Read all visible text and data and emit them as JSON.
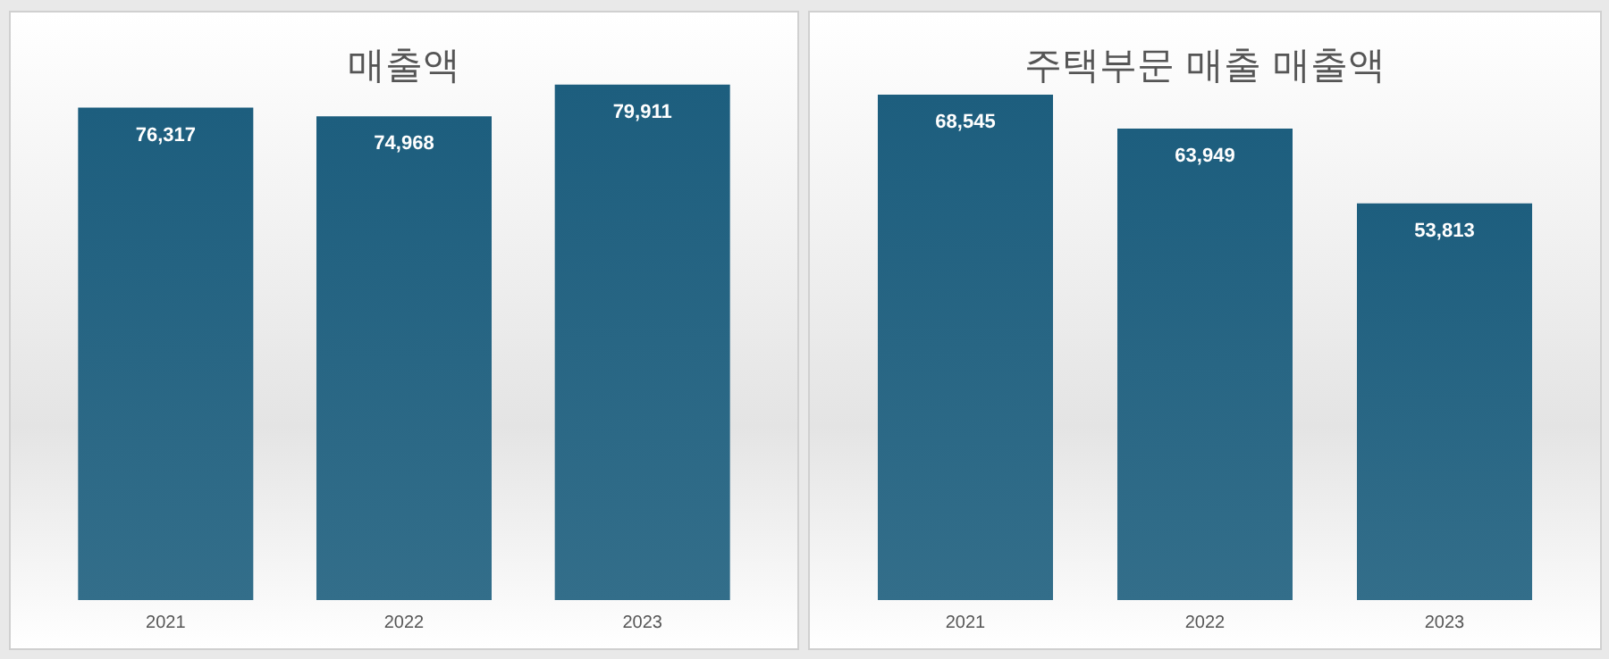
{
  "chart_data": [
    {
      "type": "bar",
      "title": "매출액",
      "categories": [
        "2021",
        "2022",
        "2023"
      ],
      "values": [
        76317,
        74968,
        79911
      ],
      "value_labels": [
        "76,317",
        "74,968",
        "79,911"
      ],
      "color": "#1d5e7e"
    },
    {
      "type": "bar",
      "title": "주택부문 매출 매출액",
      "categories": [
        "2021",
        "2022",
        "2023"
      ],
      "values": [
        68545,
        63949,
        53813
      ],
      "value_labels": [
        "68,545",
        "63,949",
        "53,813"
      ],
      "color": "#1d5e7e"
    }
  ]
}
